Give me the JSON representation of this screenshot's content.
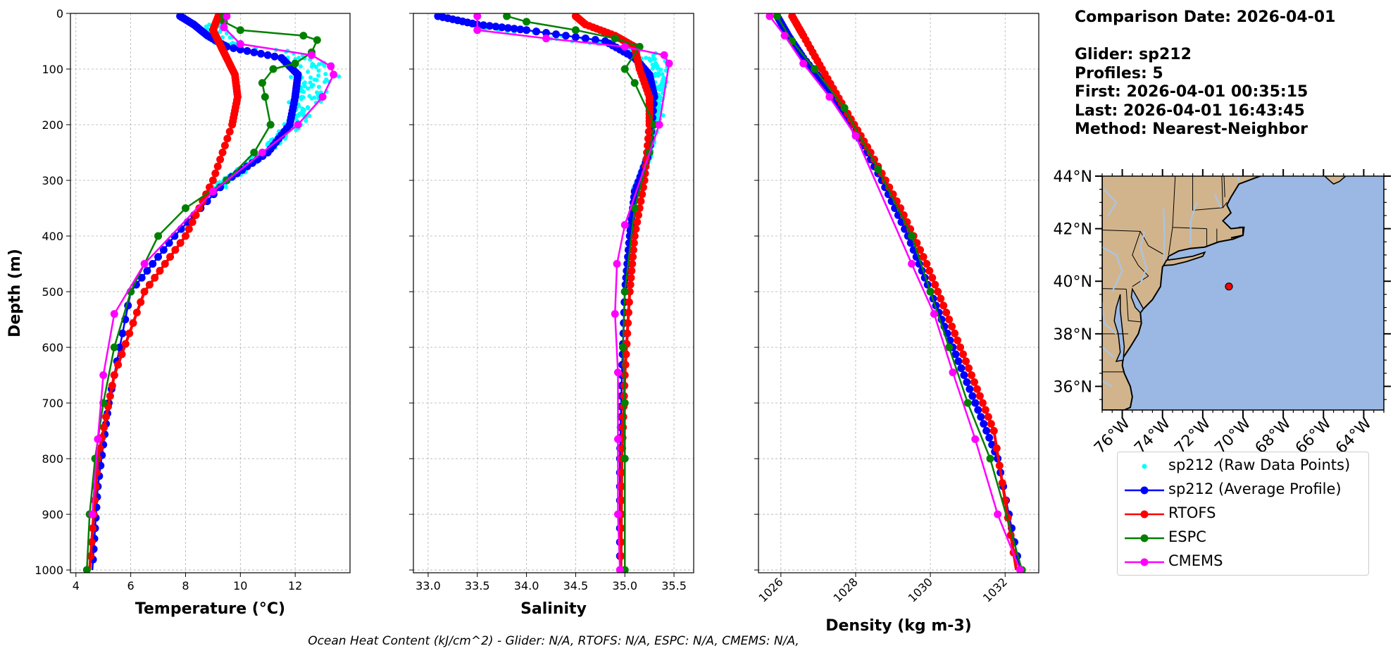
{
  "info": {
    "comparison_date": "Comparison Date: 2026-04-01",
    "glider": "Glider: sp212",
    "profiles": "Profiles: 5",
    "first": "First: 2026-04-01 00:35:15",
    "last": "Last: 2026-04-01 16:43:45",
    "method": "Method: Nearest-Neighbor"
  },
  "footer": "Ocean Heat Content (kJ/cm^2) - Glider: N/A,  RTOFS: N/A,  ESPC: N/A,  CMEMS: N/A,",
  "colors": {
    "raw": "#00ffff",
    "glider": "#0000ff",
    "rtofs": "#ff0000",
    "espc": "#008000",
    "cmems": "#ff00ff",
    "land": "#d2b48c",
    "ocean": "#9ab8e3",
    "rivers": "#a8c5e8"
  },
  "legend": [
    {
      "key": "raw",
      "label": "sp212 (Raw Data Points)",
      "style": "dot"
    },
    {
      "key": "glider",
      "label": "sp212 (Average Profile)",
      "style": "line-marker"
    },
    {
      "key": "rtofs",
      "label": "RTOFS",
      "style": "line-marker"
    },
    {
      "key": "espc",
      "label": "ESPC",
      "style": "line-marker"
    },
    {
      "key": "cmems",
      "label": "CMEMS",
      "style": "line-marker"
    }
  ],
  "chart_data": [
    {
      "type": "line",
      "xlabel": "Temperature (°C)",
      "ylabel": "Depth (m)",
      "xlim": [
        3.8,
        14
      ],
      "ylim": [
        1005,
        0
      ],
      "xticks": [
        4,
        6,
        8,
        10,
        12
      ],
      "yticks": [
        0,
        100,
        200,
        300,
        400,
        500,
        600,
        700,
        800,
        900,
        1000
      ],
      "grid": true,
      "series": [
        {
          "key": "glider",
          "x": [
            7.8,
            8.3,
            8.8,
            9.5,
            11.5,
            12.1,
            12.0,
            11.8,
            11.0,
            9.5,
            7.6,
            6.0,
            5.2,
            4.8,
            4.6
          ],
          "depth": [
            5,
            20,
            40,
            60,
            80,
            110,
            150,
            200,
            250,
            300,
            400,
            500,
            700,
            850,
            1000
          ]
        },
        {
          "key": "rtofs",
          "x": [
            9.2,
            9.0,
            9.3,
            9.5,
            9.8,
            9.9,
            9.7,
            9.0,
            8.0,
            6.5,
            5.4,
            4.8,
            4.5
          ],
          "depth": [
            5,
            30,
            60,
            80,
            110,
            150,
            200,
            300,
            400,
            500,
            650,
            800,
            1000
          ]
        },
        {
          "key": "espc",
          "x": [
            9.4,
            9.4,
            10.0,
            12.3,
            12.8,
            12.6,
            12.0,
            11.2,
            10.8,
            10.9,
            11.1,
            10.5,
            9.5,
            8.0,
            7.0,
            6.0,
            5.4,
            5.0,
            4.7,
            4.5,
            4.4
          ],
          "depth": [
            5,
            15,
            30,
            40,
            48,
            70,
            90,
            100,
            125,
            150,
            200,
            250,
            300,
            350,
            400,
            500,
            600,
            700,
            800,
            900,
            1000
          ]
        },
        {
          "key": "cmems",
          "x": [
            9.5,
            9.4,
            10.0,
            12.6,
            13.3,
            13.4,
            13.0,
            12.1,
            10.8,
            9.0,
            6.5,
            5.4,
            5.0,
            4.8,
            4.6
          ],
          "depth": [
            5,
            25,
            55,
            75,
            95,
            110,
            150,
            200,
            250,
            320,
            450,
            540,
            650,
            765,
            900
          ]
        }
      ],
      "raw_temp": true
    },
    {
      "type": "line",
      "xlabel": "Salinity",
      "ylabel": "",
      "xlim": [
        32.85,
        35.7
      ],
      "ylim": [
        1005,
        0
      ],
      "xticks": [
        33.0,
        33.5,
        34.0,
        34.5,
        35.0,
        35.5
      ],
      "yticks": [
        0,
        100,
        200,
        300,
        400,
        500,
        600,
        700,
        800,
        900,
        1000
      ],
      "grid": true,
      "series": [
        {
          "key": "glider",
          "x": [
            33.1,
            33.5,
            34.0,
            34.8,
            35.1,
            35.25,
            35.3,
            35.25,
            35.1,
            35.05,
            35.0,
            34.97,
            34.95,
            34.95
          ],
          "depth": [
            5,
            20,
            30,
            50,
            80,
            110,
            150,
            250,
            320,
            400,
            500,
            650,
            800,
            1000
          ]
        },
        {
          "key": "rtofs",
          "x": [
            34.5,
            34.6,
            34.9,
            35.1,
            35.15,
            35.25,
            35.25,
            35.2,
            35.1,
            35.05,
            35.0,
            34.97,
            34.96
          ],
          "depth": [
            5,
            20,
            40,
            60,
            100,
            150,
            200,
            300,
            400,
            500,
            650,
            800,
            1000
          ]
        },
        {
          "key": "espc",
          "x": [
            33.8,
            34.0,
            34.5,
            34.9,
            35.15,
            35.0,
            35.1,
            35.3,
            35.25,
            35.1,
            35.0,
            34.98,
            35.0,
            35.0,
            35.0
          ],
          "depth": [
            5,
            15,
            30,
            45,
            60,
            100,
            125,
            200,
            250,
            350,
            500,
            600,
            700,
            800,
            1000
          ]
        },
        {
          "key": "cmems",
          "x": [
            33.5,
            33.5,
            34.2,
            35.0,
            35.4,
            35.45,
            35.35,
            35.0,
            34.92,
            34.9,
            34.93,
            34.93,
            34.93,
            34.95
          ],
          "depth": [
            5,
            30,
            45,
            60,
            75,
            90,
            200,
            380,
            450,
            540,
            645,
            765,
            900,
            1000
          ]
        }
      ],
      "raw_sal": true
    },
    {
      "type": "line",
      "xlabel": "Density (kg m-3)",
      "ylabel": "",
      "xlim": [
        1025.4,
        1032.9
      ],
      "ylim": [
        1005,
        0
      ],
      "xticks": [
        1026,
        1028,
        1030,
        1032
      ],
      "yticks": [
        0,
        100,
        200,
        300,
        400,
        500,
        600,
        700,
        800,
        900,
        1000
      ],
      "grid": true,
      "series": [
        {
          "key": "glider",
          "x": [
            1025.9,
            1026.2,
            1026.6,
            1027.2,
            1027.9,
            1028.7,
            1029.4,
            1030.0,
            1030.6,
            1031.2,
            1031.8,
            1032.4
          ],
          "depth": [
            5,
            40,
            80,
            130,
            200,
            300,
            400,
            500,
            600,
            700,
            800,
            1000
          ]
        },
        {
          "key": "rtofs",
          "x": [
            1026.3,
            1026.6,
            1027.1,
            1027.7,
            1028.4,
            1029.2,
            1029.9,
            1030.5,
            1031.1,
            1031.7,
            1032.3
          ],
          "depth": [
            5,
            40,
            100,
            170,
            250,
            350,
            450,
            550,
            650,
            750,
            1000
          ]
        },
        {
          "key": "espc",
          "x": [
            1025.9,
            1026.3,
            1026.9,
            1027.7,
            1028.6,
            1029.5,
            1030.0,
            1030.5,
            1031.0,
            1031.6,
            1032.45
          ],
          "depth": [
            5,
            50,
            100,
            170,
            280,
            400,
            500,
            600,
            700,
            800,
            1000
          ]
        },
        {
          "key": "cmems",
          "x": [
            1025.7,
            1026.1,
            1026.6,
            1027.3,
            1028.0,
            1029.5,
            1030.1,
            1030.6,
            1031.2,
            1031.8,
            1032.4
          ],
          "depth": [
            5,
            40,
            90,
            150,
            220,
            450,
            540,
            645,
            765,
            900,
            1000
          ]
        }
      ]
    }
  ],
  "map": {
    "lat_ticks": [
      "44°N",
      "42°N",
      "40°N",
      "38°N",
      "36°N"
    ],
    "lon_ticks": [
      "76°W",
      "74°W",
      "72°W",
      "70°W",
      "68°W",
      "66°W",
      "64°W"
    ],
    "lat_values": [
      44,
      42,
      40,
      38,
      36
    ],
    "lon_values": [
      -76,
      -74,
      -72,
      -70,
      -68,
      -66,
      -64
    ],
    "extent": {
      "lon": [
        -77,
        -63
      ],
      "lat": [
        35.1,
        44
      ]
    },
    "marker": {
      "lon": -70.7,
      "lat": 39.8
    }
  }
}
